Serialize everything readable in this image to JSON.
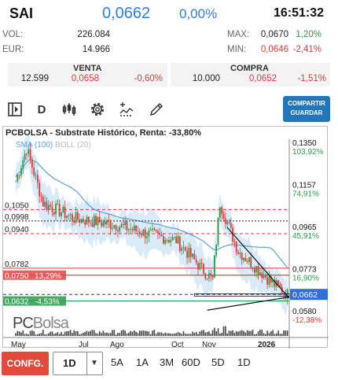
{
  "header": {
    "ticker": "SAI",
    "price": "0,0662",
    "change_pct": "0,00%",
    "time": "16:51:32"
  },
  "stats": {
    "vol_label": "VOL:",
    "vol_value": "226.084",
    "eur_label": "EUR:",
    "eur_value": "14.966",
    "max_label": "MAX:",
    "max_value": "0,0670",
    "max_pct": "1,20%",
    "min_label": "MIN:",
    "min_value": "0,0646",
    "min_pct": "-2,41%"
  },
  "book": {
    "sell_title": "VENTA",
    "sell_qty": "12.599",
    "sell_price": "0,0658",
    "sell_pct": "-0,60%",
    "buy_title": "COMPRA",
    "buy_qty": "10.000",
    "buy_price": "0,0652",
    "buy_pct": "-1,51%"
  },
  "toolbar": {
    "period_label": "D",
    "share_label_1": "COMPARTIR",
    "share_label_2": "GUARDAR",
    "icons": [
      "panel-toggle-icon",
      "candles-icon",
      "gear-icon",
      "indicators-icon",
      "pencil-icon"
    ]
  },
  "chart_data": {
    "type": "candlestick",
    "title": "PCBOLSA - Substrate Histórico, Renta: -33,80%",
    "indicators": [
      "SMA (100)",
      "BOLL (20)"
    ],
    "x_ticks": [
      "May",
      "Jul",
      "Ago",
      "Oct",
      "Nov",
      "2026"
    ],
    "y_axis_right": [
      {
        "value": "0,1350",
        "pct": "103,92%"
      },
      {
        "value": "0,1157",
        "pct": "74,91%"
      },
      {
        "value": "0,0965",
        "pct": "45,91%"
      },
      {
        "value": "0,0773",
        "pct": "16,90%"
      },
      {
        "value": "0,0580",
        "pct": "-12,38%"
      }
    ],
    "current_price": "0,0662",
    "left_levels": [
      {
        "value": "0,1050",
        "style": "dashed",
        "color": "#e03a3a"
      },
      {
        "value": "0,0998",
        "style": "dotted",
        "color": "#222222"
      },
      {
        "value": "0,0940",
        "style": "dashed",
        "color": "#e03a3a"
      },
      {
        "value": "0,0782",
        "style": "solid",
        "color": "#e03a3a"
      },
      {
        "value": "0,0750",
        "pct": "13,29%",
        "style": "box",
        "color": "#e04545"
      },
      {
        "value": "0,0632",
        "pct": "-4,53%",
        "style": "box",
        "color": "#2a9b4a"
      }
    ],
    "colors": {
      "up": "#2a9b4a",
      "down": "#e03a3a",
      "band": "#cfe6f7",
      "sma": "#5aa2dc"
    },
    "source_label": "PCBolsa"
  },
  "bottom": {
    "config_label": "CONFG.",
    "period_value": "1D",
    "ranges": [
      "5A",
      "1A",
      "3M",
      "60D",
      "5D",
      "1D"
    ]
  }
}
